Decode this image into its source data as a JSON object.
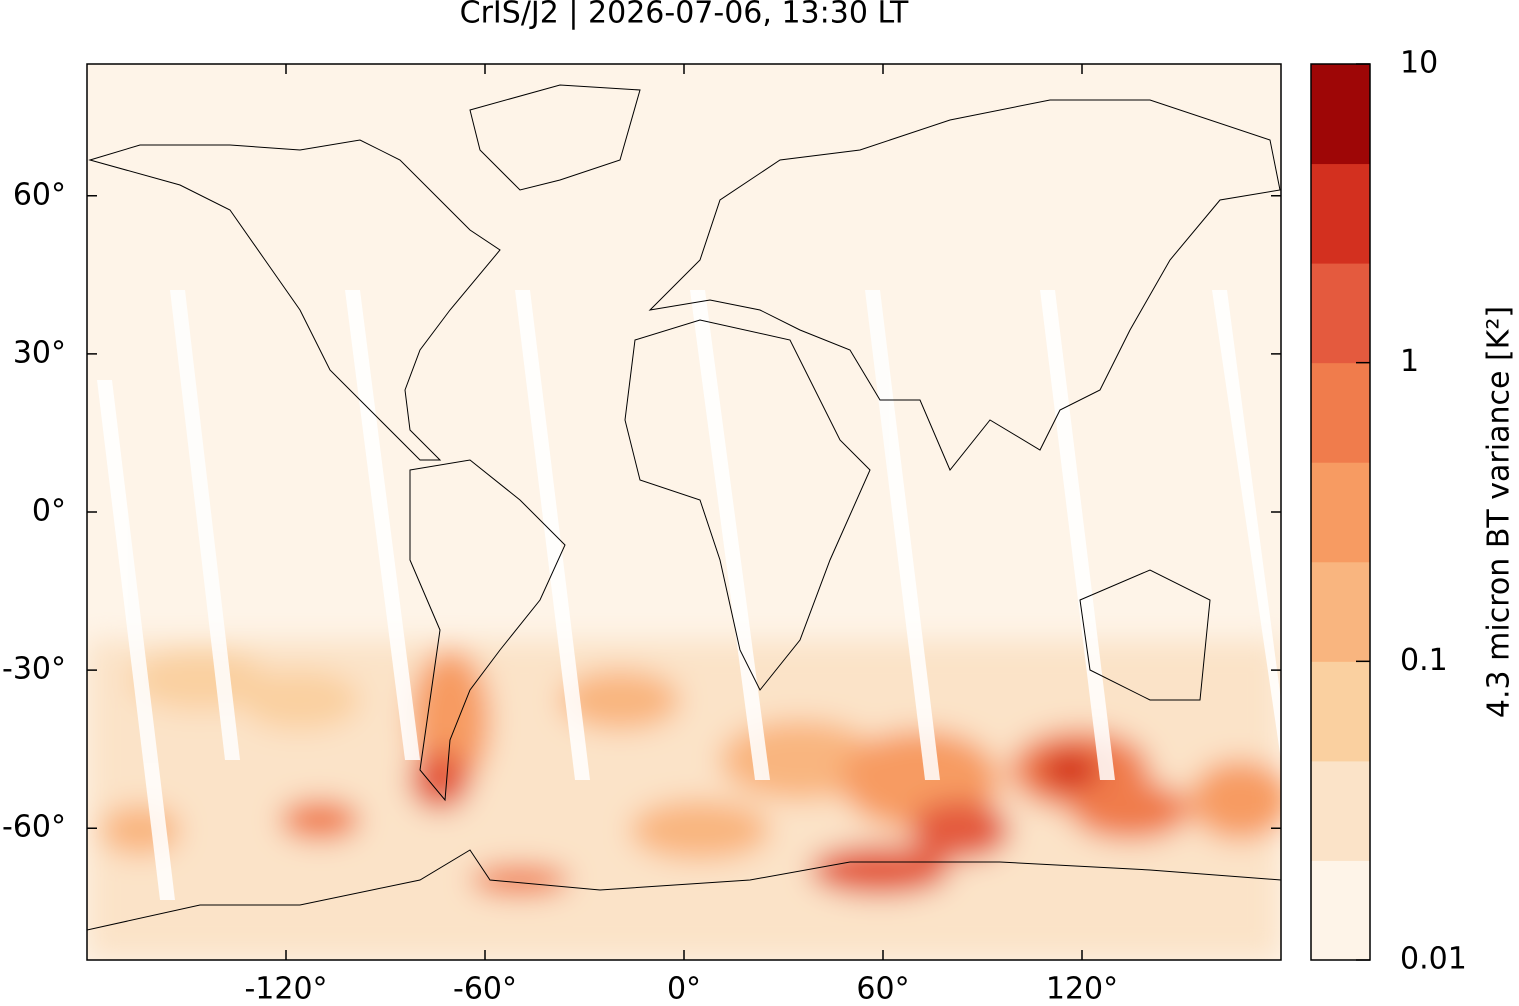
{
  "chart_data": {
    "type": "map",
    "title": "CrIS/J2 | 2026-07-06, 13:30 LT",
    "xlim": [
      -180,
      180
    ],
    "xticks": [
      {
        "value": -120,
        "label": "-120°"
      },
      {
        "value": -60,
        "label": "-60°"
      },
      {
        "value": 0,
        "label": "0°"
      },
      {
        "value": 60,
        "label": "60°"
      },
      {
        "value": 120,
        "label": "120°"
      }
    ],
    "ylim": [
      -85,
      85
    ],
    "yticks": [
      {
        "value": -60,
        "label": "-60°"
      },
      {
        "value": -30,
        "label": "-30°"
      },
      {
        "value": 0,
        "label": "0°"
      },
      {
        "value": 30,
        "label": "30°"
      },
      {
        "value": 60,
        "label": "60°"
      }
    ],
    "colorbar": {
      "label": "4.3 micron BT variance [K²]",
      "log": true,
      "lim": [
        0.01,
        10
      ],
      "ticks": [
        0.01,
        0.1,
        1,
        10
      ],
      "colors": [
        "#fef4e8",
        "#fbe3c8",
        "#fad0a0",
        "#f9b57f",
        "#f79b62",
        "#f07c4c",
        "#e45a3e",
        "#d3301f",
        "#9e0606"
      ]
    }
  }
}
